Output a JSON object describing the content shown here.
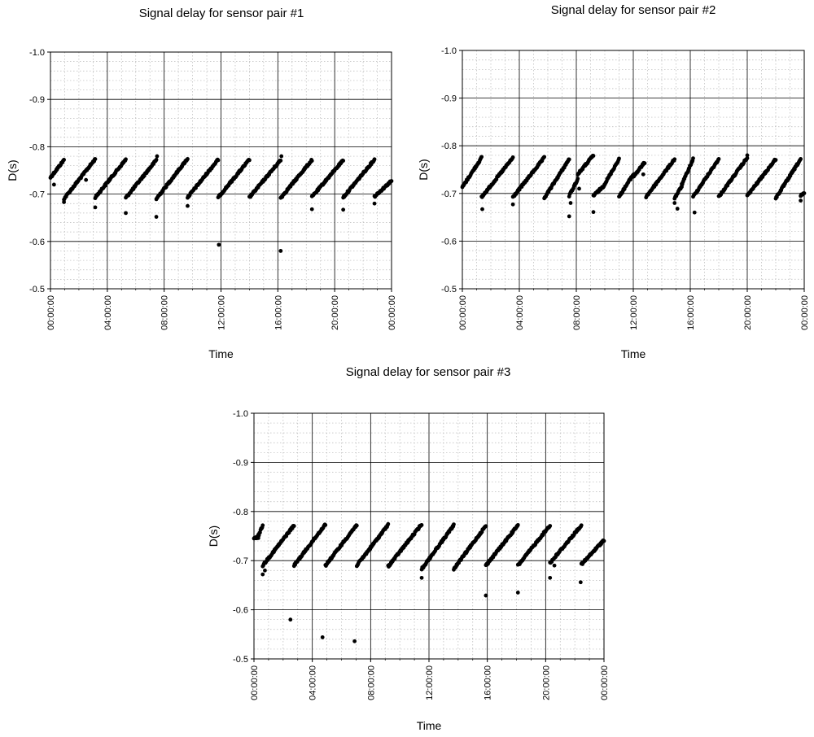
{
  "chart_data": [
    {
      "type": "scatter",
      "title": "Signal delay for sensor pair #1",
      "xlabel": "Time",
      "ylabel": "D(s)",
      "x_ticks": [
        "00:00:00",
        "04:00:00",
        "08:00:00",
        "12:00:00",
        "16:00:00",
        "20:00:00",
        "00:00:00"
      ],
      "y_ticks": [
        "-1.0",
        "-0.9",
        "-0.8",
        "-0.7",
        "-0.6",
        "-0.5"
      ],
      "xlim_hours": [
        0,
        24
      ],
      "ylim": [
        -1.0,
        -0.5
      ],
      "y_axis_inverted": true,
      "grid": true,
      "series": [
        {
          "segments": [
            {
              "start_hour": 0.0,
              "end_hour": 0.95,
              "start_value": -0.735,
              "end_value": -0.772
            },
            {
              "start_hour": 0.95,
              "end_hour": 3.15,
              "start_value": -0.69,
              "end_value": -0.774
            },
            {
              "start_hour": 3.15,
              "end_hour": 5.3,
              "start_value": -0.693,
              "end_value": -0.773
            },
            {
              "start_hour": 5.3,
              "end_hour": 7.45,
              "start_value": -0.692,
              "end_value": -0.772
            },
            {
              "start_hour": 7.45,
              "end_hour": 9.65,
              "start_value": -0.69,
              "end_value": -0.775
            },
            {
              "start_hour": 9.65,
              "end_hour": 11.8,
              "start_value": -0.693,
              "end_value": -0.773
            },
            {
              "start_hour": 11.8,
              "end_hour": 14.0,
              "start_value": -0.693,
              "end_value": -0.773
            },
            {
              "start_hour": 14.0,
              "end_hour": 16.2,
              "start_value": -0.693,
              "end_value": -0.772
            },
            {
              "start_hour": 16.2,
              "end_hour": 18.4,
              "start_value": -0.692,
              "end_value": -0.772
            },
            {
              "start_hour": 18.4,
              "end_hour": 20.6,
              "start_value": -0.694,
              "end_value": -0.772
            },
            {
              "start_hour": 20.6,
              "end_hour": 22.8,
              "start_value": -0.693,
              "end_value": -0.773
            },
            {
              "start_hour": 22.8,
              "end_hour": 24.0,
              "start_value": -0.695,
              "end_value": -0.728
            }
          ],
          "outliers": [
            {
              "hour": 0.25,
              "value": -0.72
            },
            {
              "hour": 0.95,
              "value": -0.683
            },
            {
              "hour": 2.5,
              "value": -0.73
            },
            {
              "hour": 3.15,
              "value": -0.672
            },
            {
              "hour": 5.3,
              "value": -0.66
            },
            {
              "hour": 7.45,
              "value": -0.652
            },
            {
              "hour": 7.5,
              "value": -0.78
            },
            {
              "hour": 9.65,
              "value": -0.675
            },
            {
              "hour": 11.85,
              "value": -0.593
            },
            {
              "hour": 16.2,
              "value": -0.58
            },
            {
              "hour": 16.25,
              "value": -0.78
            },
            {
              "hour": 18.4,
              "value": -0.668
            },
            {
              "hour": 20.6,
              "value": -0.667
            },
            {
              "hour": 22.8,
              "value": -0.68
            }
          ]
        }
      ]
    },
    {
      "type": "scatter",
      "title": "Signal delay for sensor pair #2",
      "xlabel": "Time",
      "ylabel": "D(s)",
      "x_ticks": [
        "00:00:00",
        "04:00:00",
        "08:00:00",
        "12:00:00",
        "16:00:00",
        "20:00:00",
        "00:00:00"
      ],
      "y_ticks": [
        "-1.0",
        "-0.9",
        "-0.8",
        "-0.7",
        "-0.6",
        "-0.5"
      ],
      "xlim_hours": [
        0,
        24
      ],
      "ylim": [
        -1.0,
        -0.5
      ],
      "y_axis_inverted": true,
      "grid": true,
      "series": [
        {
          "segments": [
            {
              "start_hour": 0.0,
              "end_hour": 1.35,
              "start_value": -0.713,
              "end_value": -0.775
            },
            {
              "start_hour": 1.35,
              "end_hour": 3.55,
              "start_value": -0.692,
              "end_value": -0.775
            },
            {
              "start_hour": 3.55,
              "end_hour": 5.75,
              "start_value": -0.692,
              "end_value": -0.775
            },
            {
              "start_hour": 5.75,
              "end_hour": 7.5,
              "start_value": -0.69,
              "end_value": -0.772
            },
            {
              "start_hour": 7.5,
              "end_hour": 8.1,
              "start_value": -0.695,
              "end_value": -0.73
            },
            {
              "start_hour": 8.1,
              "end_hour": 9.2,
              "start_value": -0.74,
              "end_value": -0.78
            },
            {
              "start_hour": 9.2,
              "end_hour": 9.9,
              "start_value": -0.695,
              "end_value": -0.715
            },
            {
              "start_hour": 9.9,
              "end_hour": 11.0,
              "start_value": -0.715,
              "end_value": -0.772
            },
            {
              "start_hour": 11.0,
              "end_hour": 12.0,
              "start_value": -0.693,
              "end_value": -0.74
            },
            {
              "start_hour": 12.0,
              "end_hour": 12.8,
              "start_value": -0.735,
              "end_value": -0.765
            },
            {
              "start_hour": 12.9,
              "end_hour": 14.9,
              "start_value": -0.693,
              "end_value": -0.772
            },
            {
              "start_hour": 14.9,
              "end_hour": 15.4,
              "start_value": -0.69,
              "end_value": -0.715
            },
            {
              "start_hour": 15.4,
              "end_hour": 16.2,
              "start_value": -0.718,
              "end_value": -0.772
            },
            {
              "start_hour": 16.2,
              "end_hour": 18.0,
              "start_value": -0.693,
              "end_value": -0.772
            },
            {
              "start_hour": 18.0,
              "end_hour": 20.0,
              "start_value": -0.693,
              "end_value": -0.775
            },
            {
              "start_hour": 20.0,
              "end_hour": 22.0,
              "start_value": -0.695,
              "end_value": -0.772
            },
            {
              "start_hour": 22.0,
              "end_hour": 23.75,
              "start_value": -0.69,
              "end_value": -0.772
            },
            {
              "start_hour": 23.75,
              "end_hour": 24.0,
              "start_value": -0.695,
              "end_value": -0.7
            }
          ],
          "outliers": [
            {
              "hour": 1.4,
              "value": -0.667
            },
            {
              "hour": 3.55,
              "value": -0.677
            },
            {
              "hour": 7.5,
              "value": -0.652
            },
            {
              "hour": 7.6,
              "value": -0.68
            },
            {
              "hour": 8.2,
              "value": -0.71
            },
            {
              "hour": 9.2,
              "value": -0.661
            },
            {
              "hour": 12.7,
              "value": -0.74
            },
            {
              "hour": 13.6,
              "value": -0.722
            },
            {
              "hour": 14.9,
              "value": -0.68
            },
            {
              "hour": 15.1,
              "value": -0.668
            },
            {
              "hour": 16.3,
              "value": -0.66
            },
            {
              "hour": 20.0,
              "value": -0.78
            },
            {
              "hour": 23.75,
              "value": -0.685
            }
          ]
        }
      ]
    },
    {
      "type": "scatter",
      "title": "Signal delay for sensor pair #3",
      "xlabel": "Time",
      "ylabel": "D(s)",
      "x_ticks": [
        "00:00:00",
        "04:00:00",
        "08:00:00",
        "12:00:00",
        "16:00:00",
        "20:00:00",
        "00:00:00"
      ],
      "y_ticks": [
        "-1.0",
        "-0.9",
        "-0.8",
        "-0.7",
        "-0.6",
        "-0.5"
      ],
      "xlim_hours": [
        0,
        24
      ],
      "ylim": [
        -1.0,
        -0.5
      ],
      "y_axis_inverted": true,
      "grid": true,
      "series": [
        {
          "segments": [
            {
              "start_hour": 0.0,
              "end_hour": 0.3,
              "start_value": -0.745,
              "end_value": -0.748
            },
            {
              "start_hour": 0.3,
              "end_hour": 0.6,
              "start_value": -0.75,
              "end_value": -0.772
            },
            {
              "start_hour": 0.6,
              "end_hour": 2.75,
              "start_value": -0.69,
              "end_value": -0.772
            },
            {
              "start_hour": 2.75,
              "end_hour": 4.9,
              "start_value": -0.69,
              "end_value": -0.774
            },
            {
              "start_hour": 4.9,
              "end_hour": 7.05,
              "start_value": -0.69,
              "end_value": -0.773
            },
            {
              "start_hour": 7.05,
              "end_hour": 9.2,
              "start_value": -0.69,
              "end_value": -0.773
            },
            {
              "start_hour": 9.2,
              "end_hour": 11.5,
              "start_value": -0.688,
              "end_value": -0.774
            },
            {
              "start_hour": 11.5,
              "end_hour": 13.7,
              "start_value": -0.683,
              "end_value": -0.772
            },
            {
              "start_hour": 13.7,
              "end_hour": 15.9,
              "start_value": -0.683,
              "end_value": -0.771
            },
            {
              "start_hour": 15.9,
              "end_hour": 18.1,
              "start_value": -0.69,
              "end_value": -0.772
            },
            {
              "start_hour": 18.1,
              "end_hour": 20.3,
              "start_value": -0.69,
              "end_value": -0.772
            },
            {
              "start_hour": 20.3,
              "end_hour": 22.45,
              "start_value": -0.695,
              "end_value": -0.772
            },
            {
              "start_hour": 22.45,
              "end_hour": 24.0,
              "start_value": -0.692,
              "end_value": -0.742
            }
          ],
          "outliers": [
            {
              "hour": 0.3,
              "value": -0.753
            },
            {
              "hour": 0.6,
              "value": -0.672
            },
            {
              "hour": 0.75,
              "value": -0.68
            },
            {
              "hour": 2.5,
              "value": -0.58
            },
            {
              "hour": 4.7,
              "value": -0.544
            },
            {
              "hour": 6.9,
              "value": -0.536
            },
            {
              "hour": 11.5,
              "value": -0.665
            },
            {
              "hour": 15.9,
              "value": -0.629
            },
            {
              "hour": 18.1,
              "value": -0.635
            },
            {
              "hour": 20.3,
              "value": -0.665
            },
            {
              "hour": 20.6,
              "value": -0.69
            },
            {
              "hour": 22.4,
              "value": -0.656
            }
          ]
        }
      ]
    }
  ]
}
